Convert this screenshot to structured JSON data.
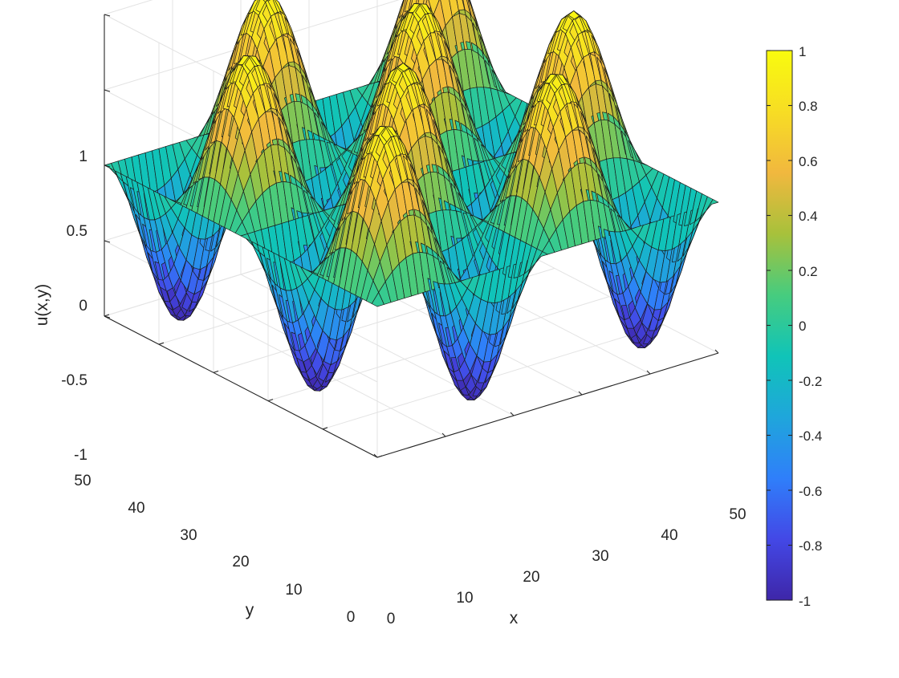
{
  "chart_data": {
    "type": "surface",
    "function": "u(x,y) = sin(2*pi*x/25) * sin(2*pi*y/25)",
    "xlabel": "x",
    "ylabel": "y",
    "zlabel": "u(x,y)",
    "xlim": [
      0,
      50
    ],
    "ylim": [
      0,
      50
    ],
    "zlim": [
      -1,
      1
    ],
    "x_ticks": [
      "0",
      "10",
      "20",
      "30",
      "40",
      "50"
    ],
    "y_ticks": [
      "0",
      "10",
      "20",
      "30",
      "40",
      "50"
    ],
    "z_ticks": [
      "-1",
      "-0.5",
      "0",
      "0.5",
      "1"
    ],
    "grid_points": 50,
    "mesh": "black",
    "grid": true,
    "colormap": "parula",
    "colormap_stops": [
      "#3e26a8",
      "#4348e6",
      "#2f7ffa",
      "#1fa6db",
      "#10c4b8",
      "#47cc7e",
      "#a8c13b",
      "#f1b83e",
      "#f7dd24",
      "#f9fb0e"
    ],
    "colorbar": {
      "range": [
        -1,
        1
      ],
      "ticks": [
        "1",
        "0.8",
        "0.6",
        "0.4",
        "0.2",
        "0",
        "-0.2",
        "-0.4",
        "-0.6",
        "-0.8",
        "-1"
      ],
      "position": "right"
    }
  }
}
